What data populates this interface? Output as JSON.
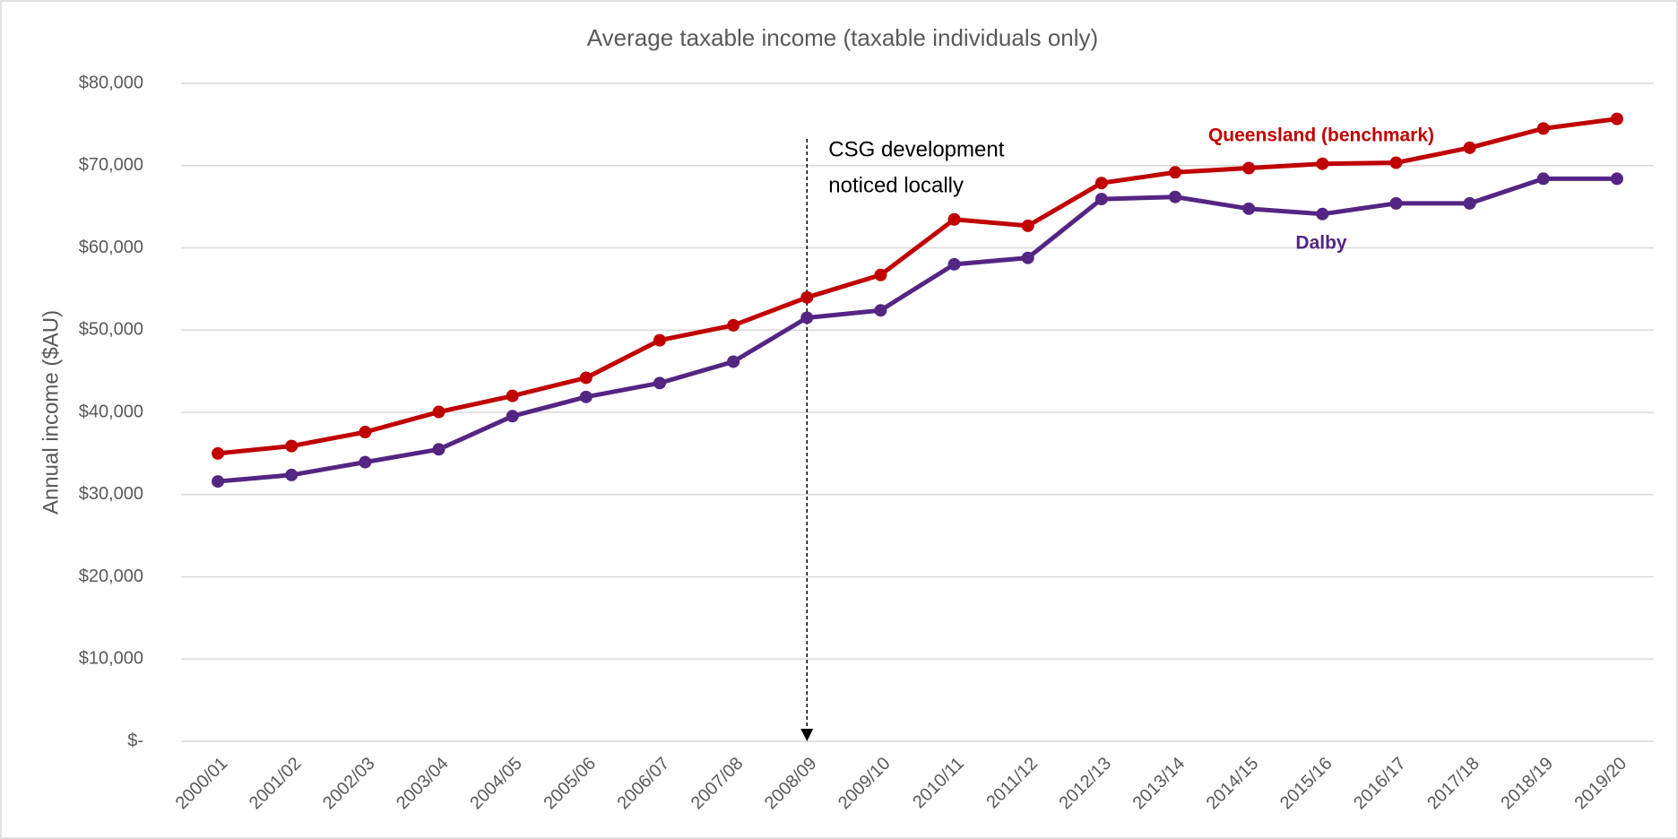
{
  "chart_data": {
    "type": "line",
    "title": "Average taxable income (taxable individuals only)",
    "y_label": "Annual income ($AU)",
    "categories": [
      "2000/01",
      "2001/02",
      "2002/03",
      "2003/04",
      "2004/05",
      "2005/06",
      "2006/07",
      "2007/08",
      "2008/09",
      "2009/10",
      "2010/11",
      "2011/12",
      "2012/13",
      "2013/14",
      "2014/15",
      "2015/16",
      "2016/17",
      "2017/18",
      "2018/19",
      "2019/20"
    ],
    "series": [
      {
        "name": "Queensland (benchmark)",
        "color": "#c00000",
        "values": [
          35000,
          35900,
          37600,
          40050,
          42000,
          44200,
          48760,
          50580,
          53970,
          56700,
          63460,
          62680,
          67880,
          69180,
          69700,
          70220,
          70350,
          72170,
          74510,
          75680
        ]
      },
      {
        "name": "Dalby",
        "color": "#542583",
        "values": [
          31600,
          32380,
          33940,
          35500,
          39530,
          41870,
          43560,
          46160,
          51500,
          52400,
          58000,
          58780,
          65930,
          66190,
          64760,
          64110,
          65410,
          65410,
          68400,
          68400
        ]
      }
    ],
    "ylim": [
      0,
      80000
    ],
    "yticks": [
      {
        "value": 0,
        "label": "$-"
      },
      {
        "value": 10000,
        "label": "$10,000"
      },
      {
        "value": 20000,
        "label": "$20,000"
      },
      {
        "value": 30000,
        "label": "$30,000"
      },
      {
        "value": 40000,
        "label": "$40,000"
      },
      {
        "value": 50000,
        "label": "$50,000"
      },
      {
        "value": 60000,
        "label": "$60,000"
      },
      {
        "value": 70000,
        "label": "$70,000"
      },
      {
        "value": 80000,
        "label": "$80,000"
      }
    ],
    "grid": true,
    "annotation": [
      "CSG development",
      "noticed locally"
    ]
  }
}
